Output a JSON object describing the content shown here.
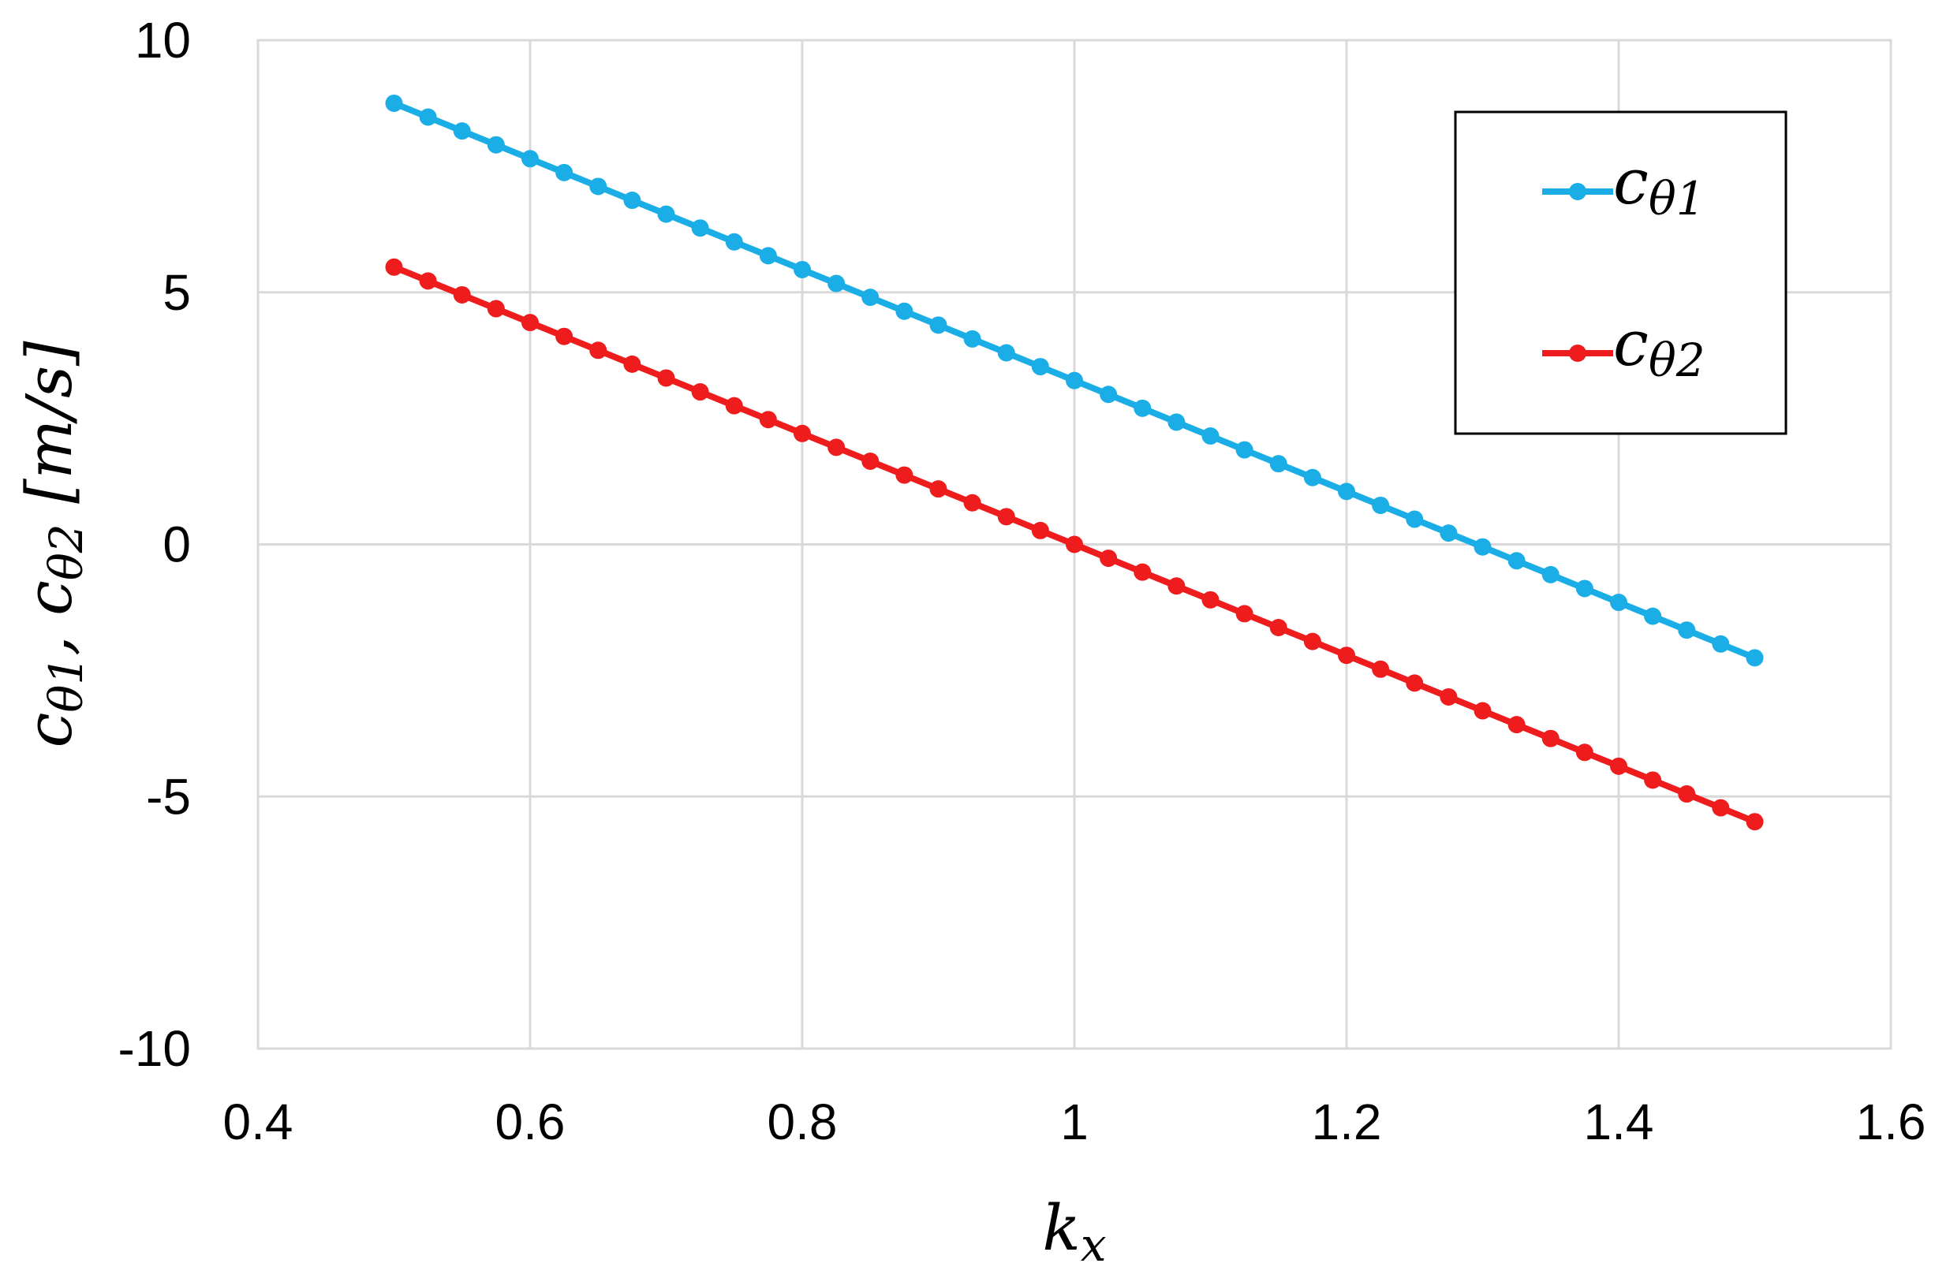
{
  "chart_data": {
    "type": "line",
    "title": "",
    "xlabel": {
      "base": "k",
      "sub": "x"
    },
    "ylabel": [
      {
        "base": "c",
        "sub": "θ1"
      },
      {
        "sep": ", "
      },
      {
        "base": "c",
        "sub": "θ2"
      },
      {
        "unit": " [m/s]"
      }
    ],
    "xlim": [
      0.4,
      1.6
    ],
    "ylim": [
      -10,
      10
    ],
    "xticks": [
      0.4,
      0.6,
      0.8,
      1.0,
      1.2,
      1.4,
      1.6
    ],
    "xtick_labels": [
      "0.4",
      "0.6",
      "0.8",
      "1",
      "1.2",
      "1.4",
      "1.6"
    ],
    "yticks": [
      -10,
      -5,
      0,
      5,
      10
    ],
    "ytick_labels": [
      "-10",
      "-5",
      "0",
      "5",
      "10"
    ],
    "grid": true,
    "legend_position": "top-right",
    "x": [
      0.5,
      0.525,
      0.55,
      0.575,
      0.6,
      0.625,
      0.65,
      0.675,
      0.7,
      0.725,
      0.75,
      0.775,
      0.8,
      0.825,
      0.85,
      0.875,
      0.9,
      0.925,
      0.95,
      0.975,
      1.0,
      1.025,
      1.05,
      1.075,
      1.1,
      1.125,
      1.15,
      1.175,
      1.2,
      1.225,
      1.25,
      1.275,
      1.3,
      1.325,
      1.35,
      1.375,
      1.4,
      1.425,
      1.45,
      1.475,
      1.5
    ],
    "series": [
      {
        "name": "cθ1",
        "legend": {
          "base": "c",
          "sub": "θ1"
        },
        "color": "#1BADE6",
        "values": [
          8.75,
          8.475,
          8.2,
          7.925,
          7.65,
          7.375,
          7.1,
          6.825,
          6.55,
          6.275,
          6.0,
          5.725,
          5.45,
          5.175,
          4.9,
          4.625,
          4.35,
          4.075,
          3.8,
          3.525,
          3.25,
          2.975,
          2.7,
          2.425,
          2.15,
          1.875,
          1.6,
          1.325,
          1.05,
          0.775,
          0.5,
          0.225,
          -0.05,
          -0.325,
          -0.6,
          -0.875,
          -1.15,
          -1.425,
          -1.7,
          -1.975,
          -2.25
        ]
      },
      {
        "name": "cθ2",
        "legend": {
          "base": "c",
          "sub": "θ2"
        },
        "color": "#EE1C1C",
        "values": [
          5.5,
          5.225,
          4.95,
          4.675,
          4.4,
          4.125,
          3.85,
          3.575,
          3.3,
          3.025,
          2.75,
          2.475,
          2.2,
          1.925,
          1.65,
          1.375,
          1.1,
          0.825,
          0.55,
          0.275,
          0.0,
          -0.275,
          -0.55,
          -0.825,
          -1.1,
          -1.375,
          -1.65,
          -1.925,
          -2.2,
          -2.475,
          -2.75,
          -3.025,
          -3.3,
          -3.575,
          -3.85,
          -4.125,
          -4.4,
          -4.675,
          -4.95,
          -5.225,
          -5.5
        ]
      }
    ]
  }
}
